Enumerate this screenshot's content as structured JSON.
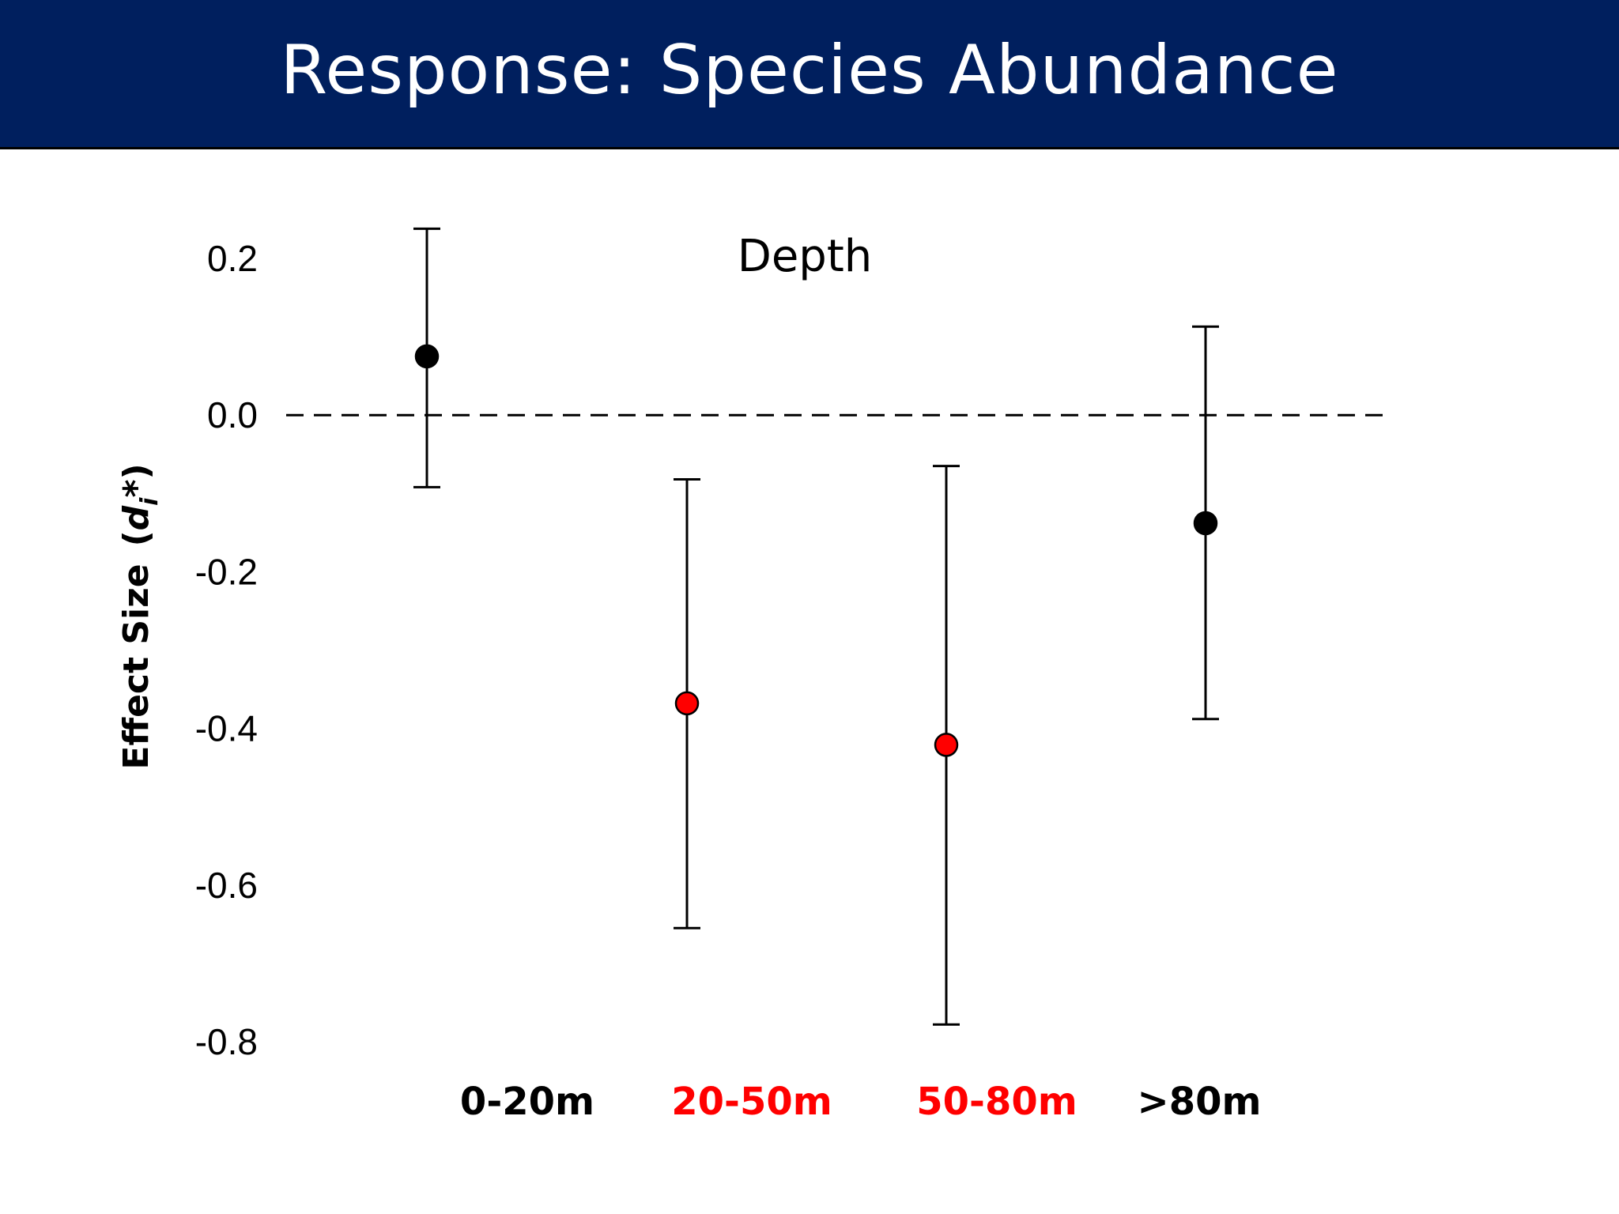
{
  "slide": {
    "title": "Response: Species Abundance"
  },
  "chart_data": {
    "type": "scatter",
    "subtype": "point-with-error-bars",
    "panel_label": "Depth",
    "ylabel": "Effect Size",
    "ylabel_symbol": "d",
    "ylabel_subscript": "i",
    "ylabel_superscript": "*",
    "ylim": [
      -0.8,
      0.2
    ],
    "yticks": [
      "0.2",
      "0.0",
      "-0.2",
      "-0.4",
      "-0.6",
      "-0.8"
    ],
    "ytick_values": [
      0.2,
      0.0,
      -0.2,
      -0.4,
      -0.6,
      -0.8
    ],
    "reference_line": {
      "y": 0.0,
      "style": "dashed"
    },
    "grid": false,
    "categories": [
      "0-20m",
      "20-50m",
      "50-80m",
      ">80m"
    ],
    "points": [
      {
        "category": "0-20m",
        "value": 0.075,
        "lower": -0.092,
        "upper": 0.238,
        "color": "#000000"
      },
      {
        "category": "20-50m",
        "value": -0.368,
        "lower": -0.655,
        "upper": -0.082,
        "color": "#ff0000"
      },
      {
        "category": "50-80m",
        "value": -0.421,
        "lower": -0.778,
        "upper": -0.065,
        "color": "#ff0000"
      },
      {
        "category": ">80m",
        "value": -0.138,
        "lower": -0.388,
        "upper": 0.113,
        "color": "#000000"
      }
    ],
    "category_label_colors": [
      "#000000",
      "#ff0000",
      "#ff0000",
      "#000000"
    ]
  }
}
